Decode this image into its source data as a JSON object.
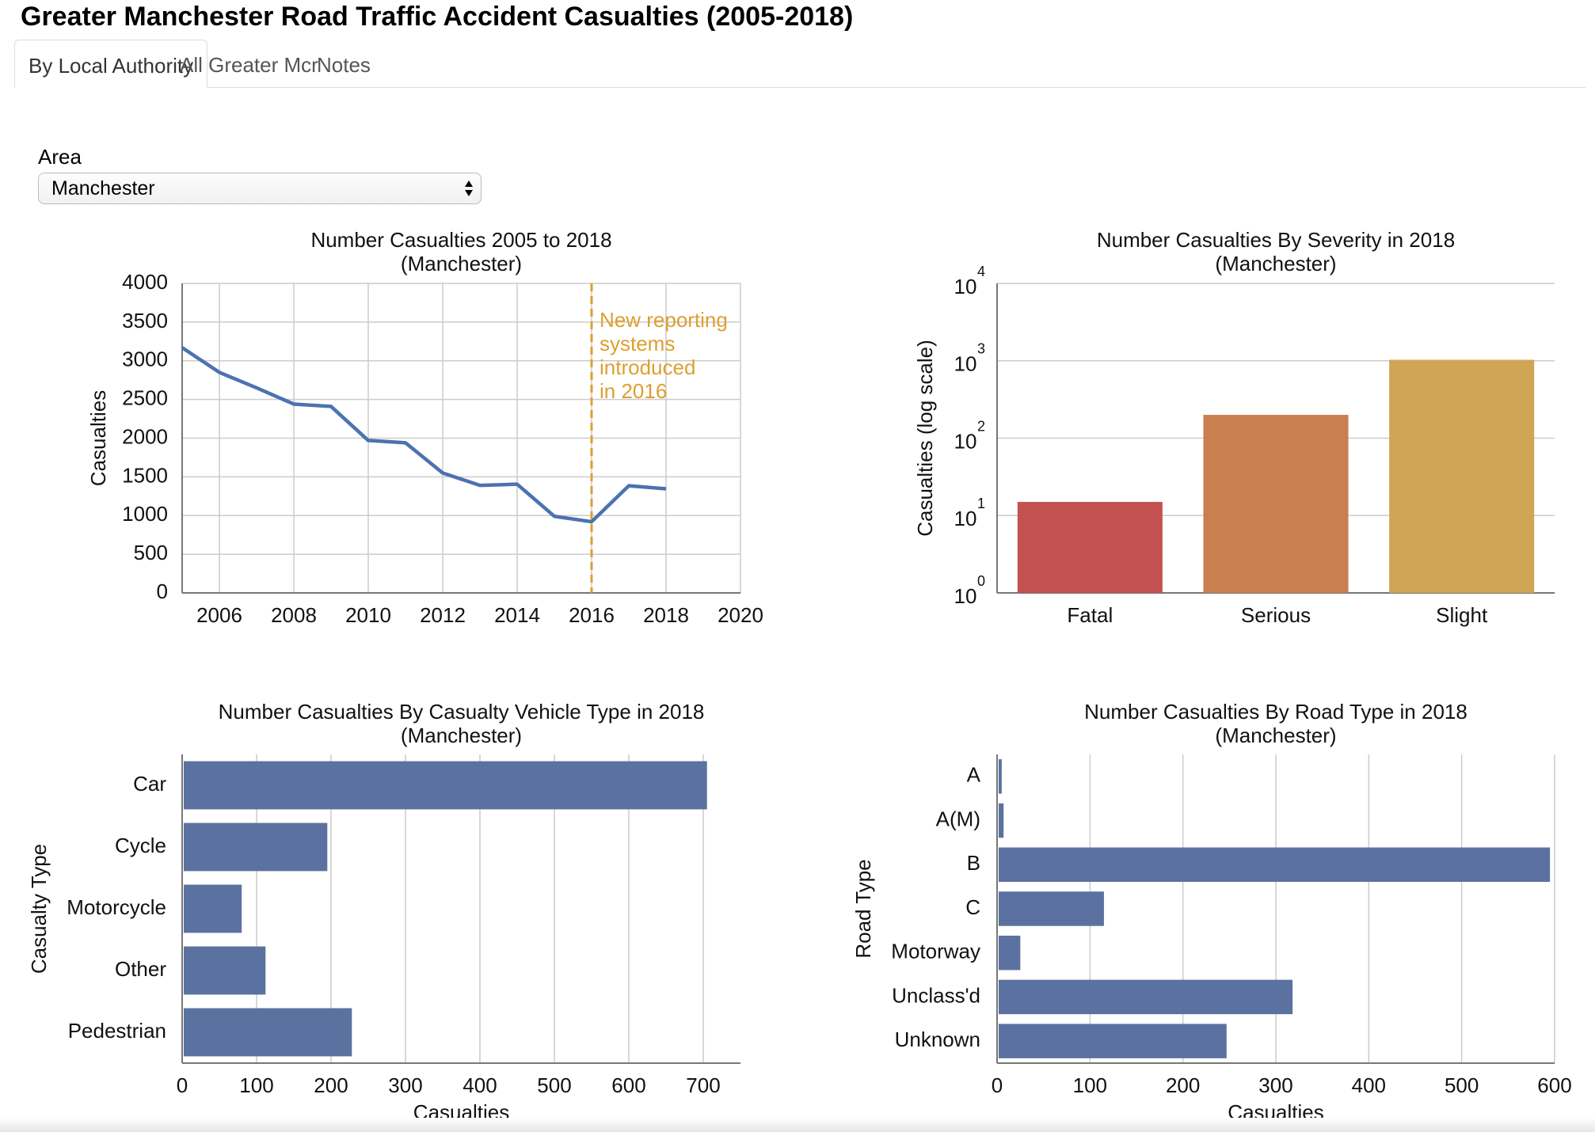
{
  "app": {
    "title": "Greater Manchester Road Traffic Accident Casualties (2005-2018)"
  },
  "tabs": [
    {
      "label": "By Local Authority",
      "active": true
    },
    {
      "label": "All Greater Mcr",
      "active": false
    },
    {
      "label": "Notes",
      "active": false
    }
  ],
  "filter": {
    "label": "Area",
    "value": "Manchester"
  },
  "colors": {
    "line": "#4c72b0",
    "bar": "#5b72a0",
    "annotation": "#dd9f30",
    "fatal": "#c45250",
    "serious": "#c97f50",
    "slight": "#cfa556",
    "grid": "#cccccc"
  },
  "chart_data": [
    {
      "type": "line",
      "title": "Number Casualties 2005 to 2018",
      "subtitle": "(Manchester)",
      "xlabel": "",
      "ylabel": "Casualties",
      "xlim": [
        2005,
        2020
      ],
      "ylim": [
        0,
        4000
      ],
      "xticks": [
        2006,
        2008,
        2010,
        2012,
        2014,
        2016,
        2018,
        2020
      ],
      "yticks": [
        0,
        500,
        1000,
        1500,
        2000,
        2500,
        3000,
        3500,
        4000
      ],
      "grid": true,
      "x": [
        2005,
        2006,
        2007,
        2008,
        2009,
        2010,
        2011,
        2012,
        2013,
        2014,
        2015,
        2016,
        2017,
        2018
      ],
      "y": [
        3170,
        2850,
        2650,
        2440,
        2410,
        1970,
        1940,
        1550,
        1390,
        1405,
        990,
        920,
        1385,
        1345
      ],
      "annotation": {
        "x": 2016,
        "lines": [
          "New reporting",
          "systems",
          "introduced",
          "in 2016"
        ]
      }
    },
    {
      "type": "bar",
      "title": "Number Casualties By Severity in 2018",
      "subtitle": "(Manchester)",
      "xlabel": "",
      "ylabel": "Casualties (log scale)",
      "yscale": "log",
      "ylim": [
        1,
        10000
      ],
      "grid": true,
      "categories": [
        "Fatal",
        "Serious",
        "Slight"
      ],
      "values": [
        15,
        200,
        1030
      ],
      "ytick_exponents": [
        "0",
        "1",
        "2",
        "3",
        "4"
      ]
    },
    {
      "type": "bar",
      "orientation": "horizontal",
      "title": "Number Casualties By Casualty Vehicle Type in 2018",
      "subtitle": "(Manchester)",
      "xlabel": "Casualties",
      "ylabel": "Casualty Type",
      "xlim": [
        0,
        750
      ],
      "xticks": [
        0,
        100,
        200,
        300,
        400,
        500,
        600,
        700
      ],
      "grid": true,
      "categories": [
        "Car",
        "Cycle",
        "Motorcycle",
        "Other",
        "Pedestrian"
      ],
      "values": [
        705,
        195,
        80,
        112,
        228
      ]
    },
    {
      "type": "bar",
      "orientation": "horizontal",
      "title": "Number Casualties By Road Type in 2018",
      "subtitle": "(Manchester)",
      "xlabel": "Casualties",
      "ylabel": "Road Type",
      "xlim": [
        0,
        600
      ],
      "xticks": [
        0,
        100,
        200,
        300,
        400,
        500,
        600
      ],
      "grid": true,
      "categories": [
        "A",
        "A(M)",
        "B",
        "C",
        "Motorway",
        "Unclass'd",
        "Unknown"
      ],
      "values": [
        5,
        7,
        595,
        115,
        25,
        318,
        247
      ]
    }
  ]
}
